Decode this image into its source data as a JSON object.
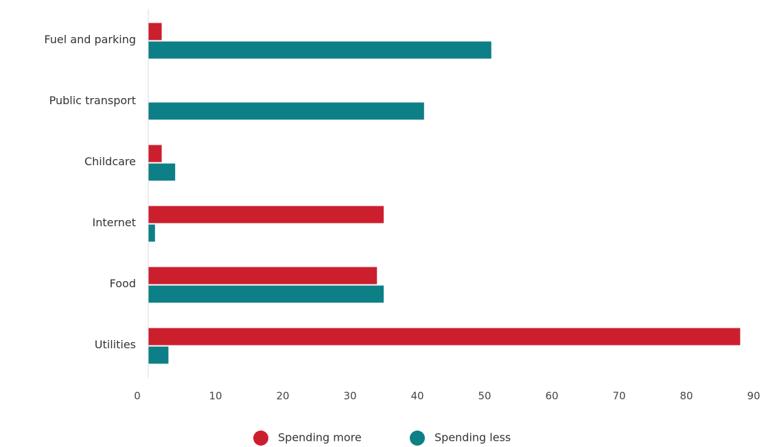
{
  "chart_data": {
    "type": "bar",
    "orientation": "horizontal",
    "title": "",
    "xlabel": "",
    "ylabel": "",
    "categories": [
      "Fuel and parking",
      "Public transport",
      "Childcare",
      "Internet",
      "Food",
      "Utilities"
    ],
    "series": [
      {
        "name": "Spending more",
        "color": "#cc1f2e",
        "values": [
          2,
          0,
          2,
          35,
          34,
          88
        ]
      },
      {
        "name": "Spending less",
        "color": "#0d7f86",
        "values": [
          51,
          41,
          4,
          1,
          35,
          3
        ]
      }
    ],
    "xlim": [
      0,
      90
    ],
    "xticks": [
      0,
      10,
      20,
      30,
      40,
      50,
      60,
      70,
      80,
      90
    ],
    "grid": false,
    "legend_position": "bottom-center"
  }
}
